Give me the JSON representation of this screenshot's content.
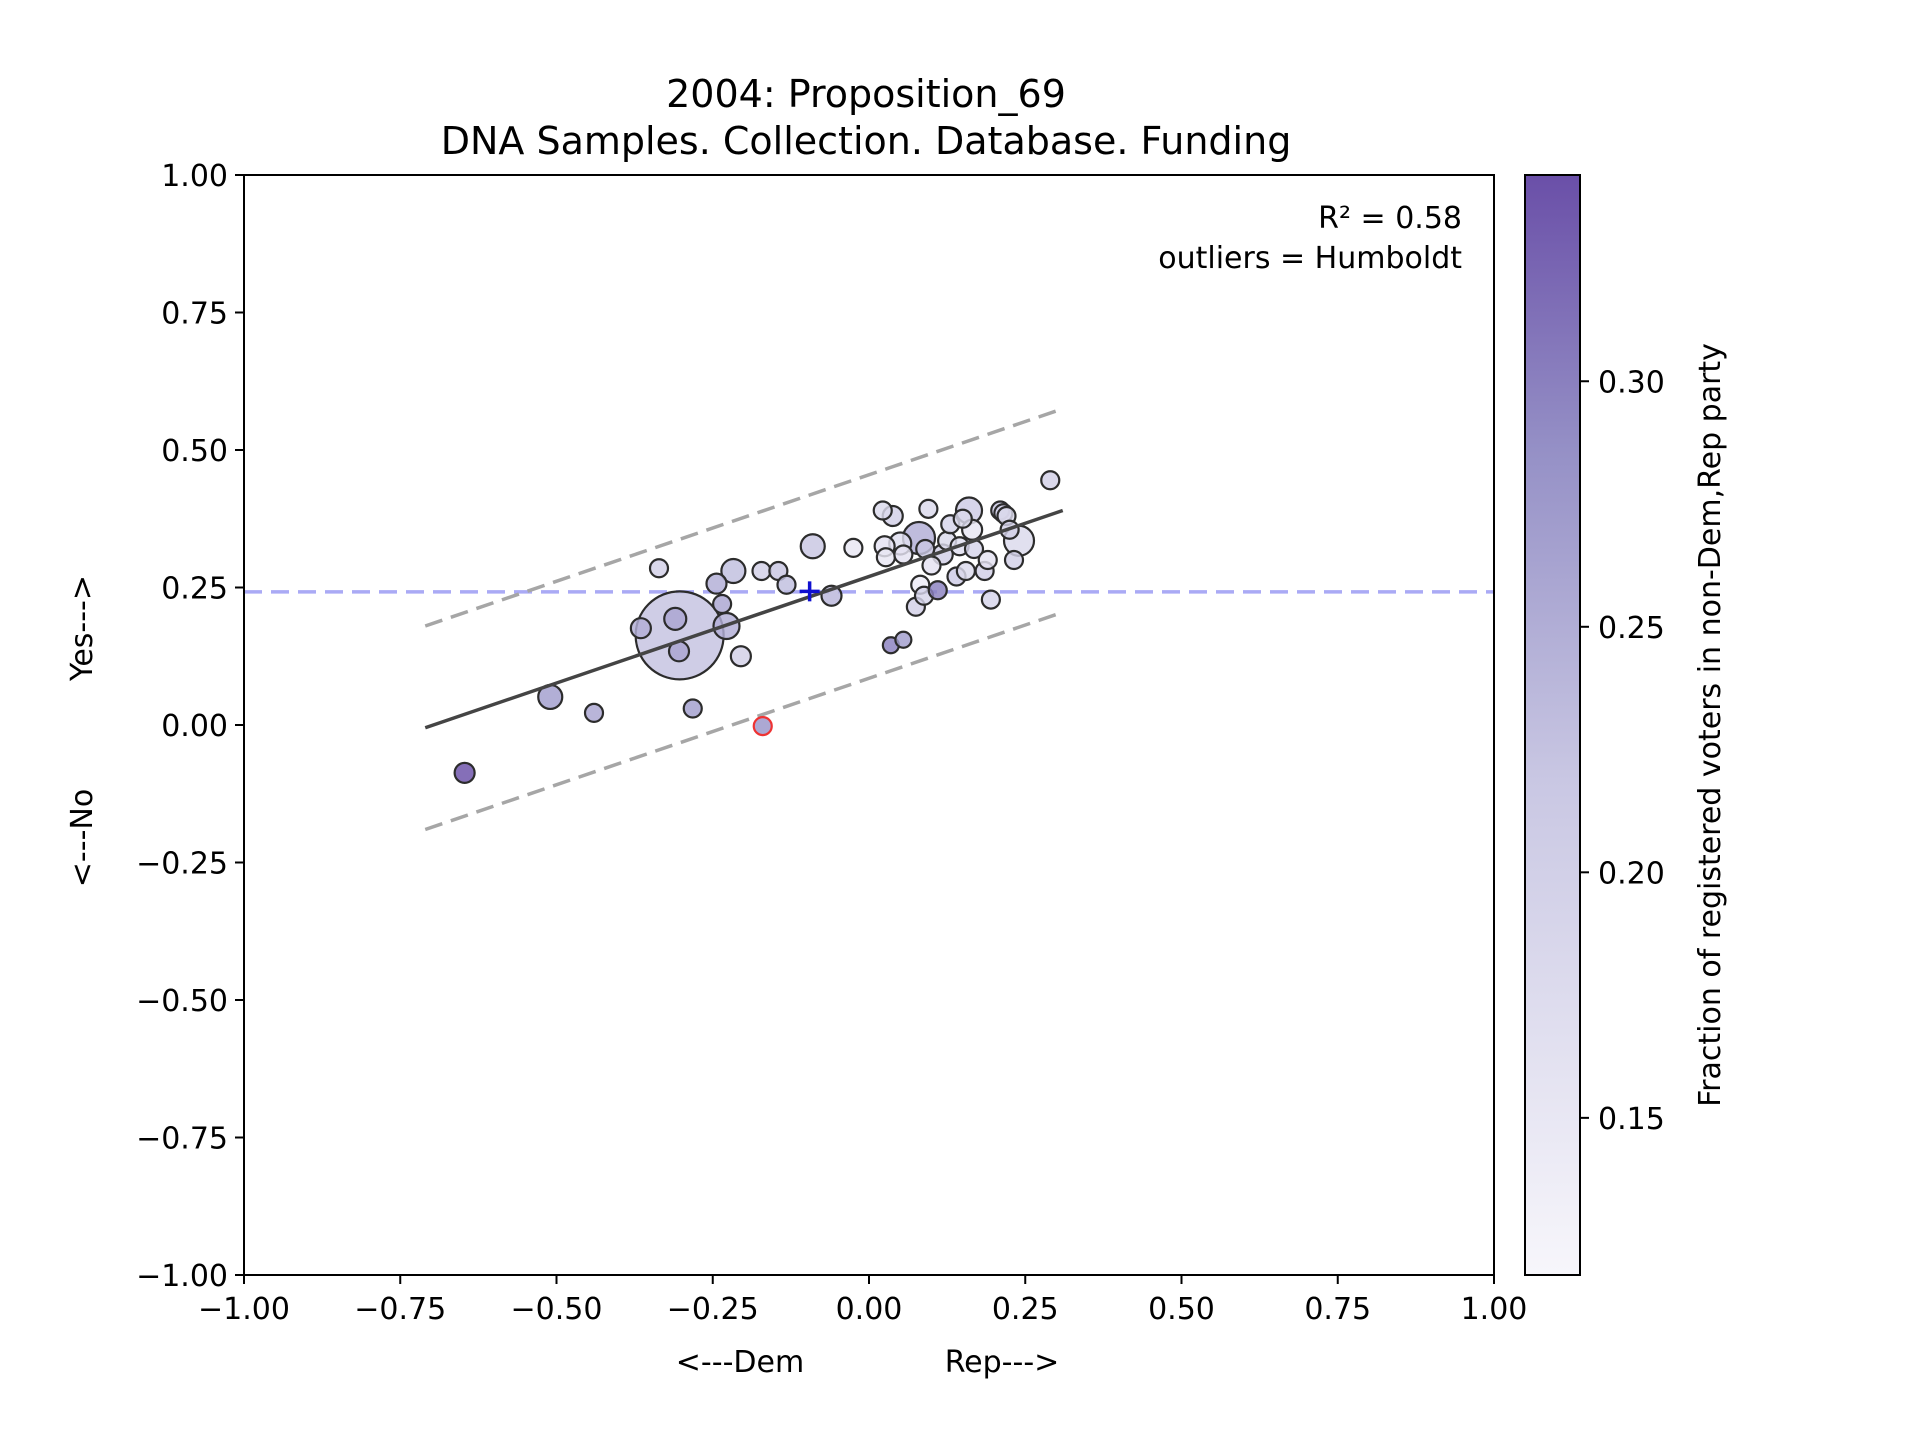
{
  "chart_data": {
    "type": "scatter",
    "title": "2004: Proposition_69",
    "subtitle": "DNA Samples. Collection. Database. Funding",
    "xlabel_left": "<---Dem",
    "xlabel_right": "Rep--->",
    "ylabel_bottom": "<---No",
    "ylabel_top": "Yes--->",
    "xlim": [
      -1.0,
      1.0
    ],
    "ylim": [
      -1.0,
      1.0
    ],
    "xticks": [
      -1.0,
      -0.75,
      -0.5,
      -0.25,
      0.0,
      0.25,
      0.5,
      0.75,
      1.0
    ],
    "yticks": [
      -1.0,
      -0.75,
      -0.5,
      -0.25,
      0.0,
      0.25,
      0.5,
      0.75,
      1.0
    ],
    "xtick_labels": [
      "−1.00",
      "−0.75",
      "−0.50",
      "−0.25",
      "0.00",
      "0.25",
      "0.50",
      "0.75",
      "1.00"
    ],
    "ytick_labels": [
      "−1.00",
      "−0.75",
      "−0.50",
      "−0.25",
      "0.00",
      "0.25",
      "0.50",
      "0.75",
      "1.00"
    ],
    "annotation_r2": "R² = 0.58",
    "annotation_outliers": "outliers = Humboldt",
    "horizontal_reference_y": 0.242,
    "mean_marker": {
      "x": -0.095,
      "y": 0.243
    },
    "regression_line": {
      "x": [
        -0.71,
        0.31
      ],
      "y": [
        -0.005,
        0.39
      ]
    },
    "upper_band": {
      "x": [
        -0.71,
        0.31
      ],
      "y": [
        0.18,
        0.575
      ]
    },
    "lower_band": {
      "x": [
        -0.71,
        0.31
      ],
      "y": [
        -0.19,
        0.205
      ]
    },
    "colorbar": {
      "label": "Fraction of registered voters in non-Dem,Rep party",
      "min": 0.118,
      "max": 0.342,
      "ticks": [
        0.15,
        0.2,
        0.25,
        0.3
      ],
      "tick_labels": [
        "0.15",
        "0.20",
        "0.25",
        "0.30"
      ]
    },
    "colors": {
      "low": "#f7f6fb",
      "mid": "#b9b7da",
      "high": "#6a4fa8",
      "reference_line": "#aaaaf5",
      "mean_marker": "#1010d0",
      "outlier_edge": "#ee3333"
    },
    "points": [
      {
        "x": -0.303,
        "y": 0.163,
        "s": 44,
        "c": 0.225
      },
      {
        "x": -0.647,
        "y": -0.087,
        "s": 10,
        "c": 0.342
      },
      {
        "x": -0.51,
        "y": 0.051,
        "s": 12,
        "c": 0.27
      },
      {
        "x": -0.44,
        "y": 0.022,
        "s": 9,
        "c": 0.26
      },
      {
        "x": -0.282,
        "y": 0.03,
        "s": 9,
        "c": 0.27
      },
      {
        "x": -0.336,
        "y": 0.285,
        "s": 9,
        "c": 0.2
      },
      {
        "x": -0.365,
        "y": 0.176,
        "s": 10,
        "c": 0.25
      },
      {
        "x": -0.31,
        "y": 0.193,
        "s": 11,
        "c": 0.26
      },
      {
        "x": -0.304,
        "y": 0.134,
        "s": 10,
        "c": 0.26
      },
      {
        "x": -0.244,
        "y": 0.257,
        "s": 10,
        "c": 0.25
      },
      {
        "x": -0.235,
        "y": 0.22,
        "s": 9,
        "c": 0.26
      },
      {
        "x": -0.228,
        "y": 0.18,
        "s": 13,
        "c": 0.25
      },
      {
        "x": -0.217,
        "y": 0.28,
        "s": 12,
        "c": 0.23
      },
      {
        "x": -0.205,
        "y": 0.125,
        "s": 10,
        "c": 0.2
      },
      {
        "x": -0.172,
        "y": 0.28,
        "s": 9,
        "c": 0.2
      },
      {
        "x": -0.145,
        "y": 0.28,
        "s": 9,
        "c": 0.22
      },
      {
        "x": -0.132,
        "y": 0.255,
        "s": 9,
        "c": 0.23
      },
      {
        "x": -0.17,
        "y": -0.002,
        "s": 9,
        "c": 0.28,
        "outlier": true
      },
      {
        "x": -0.09,
        "y": 0.325,
        "s": 12,
        "c": 0.22
      },
      {
        "x": -0.06,
        "y": 0.235,
        "s": 10,
        "c": 0.24
      },
      {
        "x": -0.025,
        "y": 0.322,
        "s": 9,
        "c": 0.15
      },
      {
        "x": 0.022,
        "y": 0.39,
        "s": 9,
        "c": 0.18
      },
      {
        "x": 0.025,
        "y": 0.325,
        "s": 10,
        "c": 0.16
      },
      {
        "x": 0.027,
        "y": 0.305,
        "s": 9,
        "c": 0.15
      },
      {
        "x": 0.038,
        "y": 0.38,
        "s": 10,
        "c": 0.2
      },
      {
        "x": 0.035,
        "y": 0.145,
        "s": 8,
        "c": 0.3
      },
      {
        "x": 0.055,
        "y": 0.155,
        "s": 8,
        "c": 0.27
      },
      {
        "x": 0.05,
        "y": 0.33,
        "s": 11,
        "c": 0.17
      },
      {
        "x": 0.055,
        "y": 0.31,
        "s": 9,
        "c": 0.16
      },
      {
        "x": 0.08,
        "y": 0.34,
        "s": 16,
        "c": 0.25
      },
      {
        "x": 0.082,
        "y": 0.255,
        "s": 9,
        "c": 0.14
      },
      {
        "x": 0.075,
        "y": 0.215,
        "s": 9,
        "c": 0.2
      },
      {
        "x": 0.088,
        "y": 0.235,
        "s": 9,
        "c": 0.19
      },
      {
        "x": 0.09,
        "y": 0.32,
        "s": 9,
        "c": 0.22
      },
      {
        "x": 0.095,
        "y": 0.393,
        "s": 9,
        "c": 0.18
      },
      {
        "x": 0.1,
        "y": 0.29,
        "s": 9,
        "c": 0.16
      },
      {
        "x": 0.11,
        "y": 0.245,
        "s": 9,
        "c": 0.3
      },
      {
        "x": 0.118,
        "y": 0.31,
        "s": 10,
        "c": 0.2
      },
      {
        "x": 0.125,
        "y": 0.335,
        "s": 9,
        "c": 0.18
      },
      {
        "x": 0.13,
        "y": 0.365,
        "s": 9,
        "c": 0.19
      },
      {
        "x": 0.14,
        "y": 0.27,
        "s": 9,
        "c": 0.21
      },
      {
        "x": 0.145,
        "y": 0.325,
        "s": 9,
        "c": 0.17
      },
      {
        "x": 0.15,
        "y": 0.375,
        "s": 9,
        "c": 0.18
      },
      {
        "x": 0.16,
        "y": 0.39,
        "s": 13,
        "c": 0.21
      },
      {
        "x": 0.165,
        "y": 0.355,
        "s": 10,
        "c": 0.15
      },
      {
        "x": 0.168,
        "y": 0.32,
        "s": 9,
        "c": 0.19
      },
      {
        "x": 0.155,
        "y": 0.28,
        "s": 9,
        "c": 0.18
      },
      {
        "x": 0.185,
        "y": 0.28,
        "s": 9,
        "c": 0.2
      },
      {
        "x": 0.19,
        "y": 0.3,
        "s": 9,
        "c": 0.16
      },
      {
        "x": 0.195,
        "y": 0.228,
        "s": 9,
        "c": 0.19
      },
      {
        "x": 0.21,
        "y": 0.39,
        "s": 9,
        "c": 0.22
      },
      {
        "x": 0.215,
        "y": 0.385,
        "s": 9,
        "c": 0.2
      },
      {
        "x": 0.22,
        "y": 0.38,
        "s": 9,
        "c": 0.18
      },
      {
        "x": 0.225,
        "y": 0.355,
        "s": 9,
        "c": 0.2
      },
      {
        "x": 0.24,
        "y": 0.335,
        "s": 15,
        "c": 0.18
      },
      {
        "x": 0.232,
        "y": 0.3,
        "s": 9,
        "c": 0.2
      },
      {
        "x": 0.29,
        "y": 0.445,
        "s": 9,
        "c": 0.2
      }
    ]
  }
}
